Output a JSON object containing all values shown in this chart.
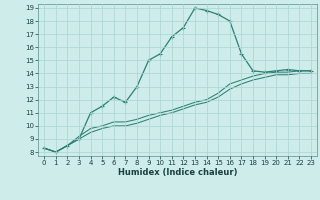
{
  "xlabel": "Humidex (Indice chaleur)",
  "ylabel": "",
  "bg_color": "#ceecea",
  "grid_color": "#aad4d0",
  "line_color": "#2d7f74",
  "xlim": [
    -0.5,
    23.5
  ],
  "ylim": [
    7.7,
    19.3
  ],
  "yticks": [
    8,
    9,
    10,
    11,
    12,
    13,
    14,
    15,
    16,
    17,
    18,
    19
  ],
  "xticks": [
    0,
    1,
    2,
    3,
    4,
    5,
    6,
    7,
    8,
    9,
    10,
    11,
    12,
    13,
    14,
    15,
    16,
    17,
    18,
    19,
    20,
    21,
    22,
    23
  ],
  "line1_x": [
    0,
    1,
    2,
    3,
    4,
    5,
    6,
    7,
    8,
    9,
    10,
    11,
    12,
    13,
    14,
    15,
    16,
    17,
    18,
    19,
    20,
    21,
    22,
    23
  ],
  "line1_y": [
    8.3,
    8.0,
    8.5,
    9.0,
    11.0,
    11.5,
    12.2,
    11.8,
    13.0,
    15.0,
    15.5,
    16.8,
    17.5,
    19.0,
    18.8,
    18.5,
    18.0,
    15.5,
    14.2,
    14.1,
    14.2,
    14.3,
    14.2,
    14.2
  ],
  "line2_x": [
    0,
    1,
    2,
    3,
    4,
    5,
    6,
    7,
    8,
    9,
    10,
    11,
    12,
    13,
    14,
    15,
    16,
    17,
    18,
    19,
    20,
    21,
    22,
    23
  ],
  "line2_y": [
    8.3,
    8.0,
    8.5,
    9.2,
    9.8,
    10.0,
    10.3,
    10.3,
    10.5,
    10.8,
    11.0,
    11.2,
    11.5,
    11.8,
    12.0,
    12.5,
    13.2,
    13.5,
    13.8,
    14.0,
    14.1,
    14.1,
    14.2,
    14.2
  ],
  "line3_x": [
    0,
    1,
    2,
    3,
    4,
    5,
    6,
    7,
    8,
    9,
    10,
    11,
    12,
    13,
    14,
    15,
    16,
    17,
    18,
    19,
    20,
    21,
    22,
    23
  ],
  "line3_y": [
    8.3,
    8.0,
    8.5,
    9.0,
    9.5,
    9.8,
    10.0,
    10.0,
    10.2,
    10.5,
    10.8,
    11.0,
    11.3,
    11.6,
    11.8,
    12.2,
    12.8,
    13.2,
    13.5,
    13.7,
    13.9,
    13.9,
    14.0,
    14.0
  ],
  "tick_fontsize": 5.0,
  "xlabel_fontsize": 6.0,
  "marker": "+",
  "markersize": 3.5,
  "linewidth1": 0.9,
  "linewidth2": 0.75,
  "linewidth3": 0.75
}
